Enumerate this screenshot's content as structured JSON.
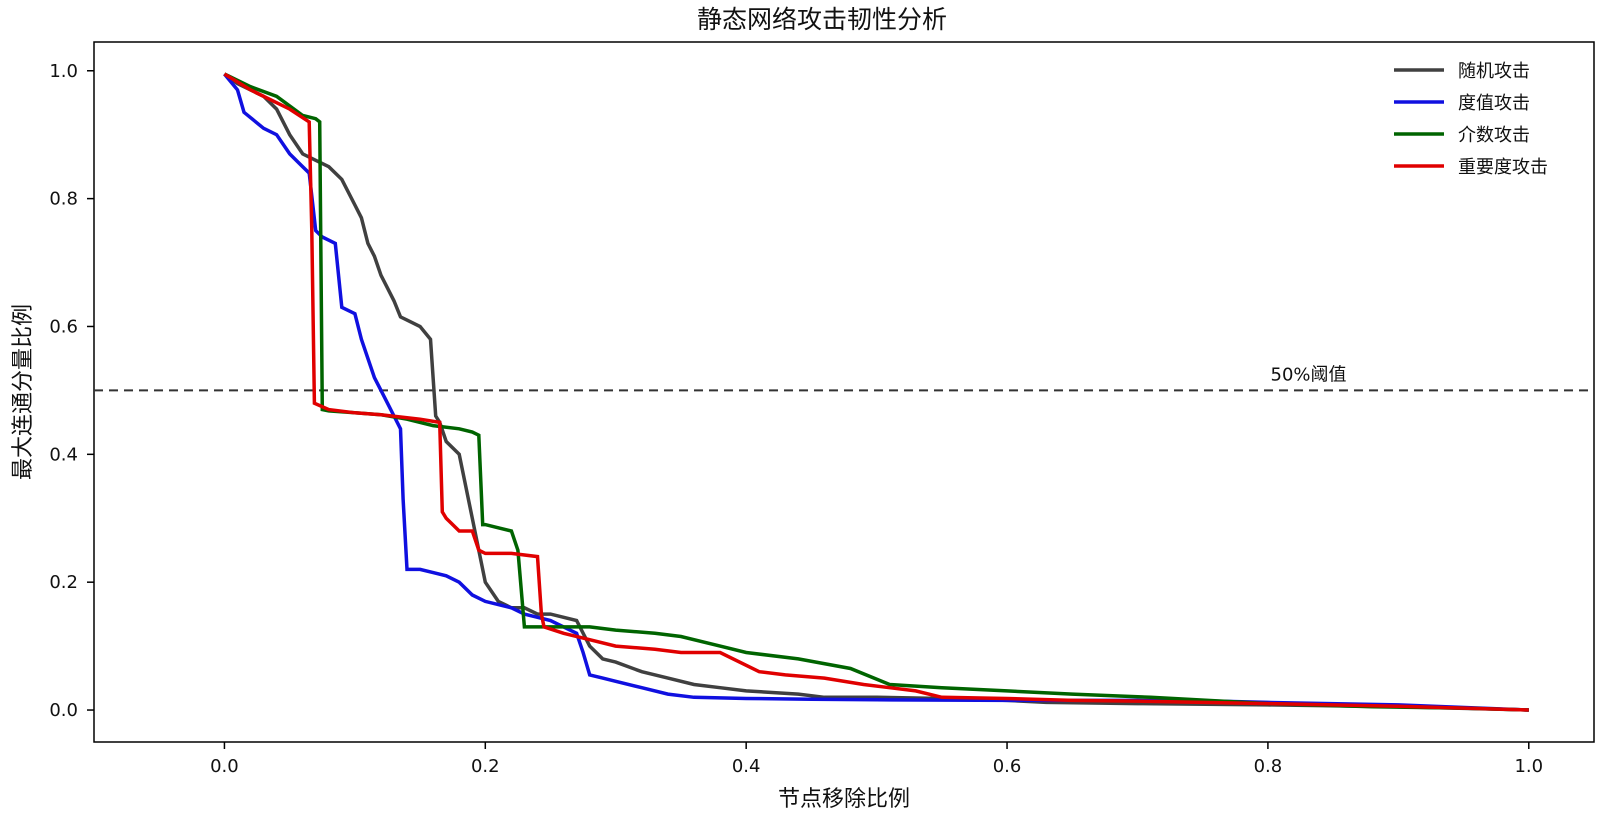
{
  "chart_data": {
    "type": "line",
    "title": "静态网络攻击韧性分析",
    "xlabel": "节点移除比例",
    "ylabel": "最大连通分量比例",
    "xlim": [
      -0.1,
      1.05
    ],
    "ylim": [
      -0.05,
      1.045
    ],
    "xticks": [
      "0.0",
      "0.2",
      "0.4",
      "0.6",
      "0.8",
      "1.0"
    ],
    "yticks": [
      "0.0",
      "0.2",
      "0.4",
      "0.6",
      "0.8",
      "1.0"
    ],
    "xtick_values": [
      0,
      0.2,
      0.4,
      0.6,
      0.8,
      1.0
    ],
    "ytick_values": [
      0,
      0.2,
      0.4,
      0.6,
      0.8,
      1.0
    ],
    "grid": false,
    "legend_position": "top-right",
    "threshold": {
      "y": 0.5,
      "label": "50%阈值",
      "color": "#333333"
    },
    "series": [
      {
        "name": "随机攻击",
        "color": "#404040",
        "x": [
          0,
          0.01,
          0.03,
          0.04,
          0.05,
          0.06,
          0.07,
          0.08,
          0.09,
          0.1,
          0.105,
          0.11,
          0.115,
          0.12,
          0.125,
          0.13,
          0.135,
          0.14,
          0.15,
          0.158,
          0.162,
          0.165,
          0.17,
          0.175,
          0.18,
          0.19,
          0.2,
          0.21,
          0.22,
          0.23,
          0.24,
          0.25,
          0.26,
          0.27,
          0.28,
          0.29,
          0.3,
          0.32,
          0.34,
          0.36,
          0.38,
          0.4,
          0.44,
          0.46,
          0.5,
          0.55,
          0.6,
          0.63,
          0.7,
          0.8,
          0.9,
          1.0
        ],
        "y": [
          0.995,
          0.98,
          0.96,
          0.94,
          0.9,
          0.87,
          0.86,
          0.85,
          0.83,
          0.79,
          0.77,
          0.73,
          0.71,
          0.68,
          0.66,
          0.64,
          0.615,
          0.61,
          0.6,
          0.58,
          0.46,
          0.45,
          0.42,
          0.41,
          0.4,
          0.3,
          0.2,
          0.17,
          0.16,
          0.16,
          0.15,
          0.15,
          0.145,
          0.14,
          0.1,
          0.08,
          0.075,
          0.06,
          0.05,
          0.04,
          0.035,
          0.03,
          0.025,
          0.02,
          0.02,
          0.018,
          0.015,
          0.012,
          0.01,
          0.008,
          0.005,
          0.0
        ]
      },
      {
        "name": "度值攻击",
        "color": "#1010e0",
        "x": [
          0,
          0.01,
          0.015,
          0.03,
          0.04,
          0.05,
          0.06,
          0.065,
          0.07,
          0.075,
          0.08,
          0.085,
          0.09,
          0.1,
          0.105,
          0.11,
          0.115,
          0.12,
          0.125,
          0.13,
          0.135,
          0.137,
          0.14,
          0.15,
          0.16,
          0.17,
          0.18,
          0.19,
          0.2,
          0.21,
          0.22,
          0.23,
          0.24,
          0.25,
          0.26,
          0.27,
          0.275,
          0.28,
          0.29,
          0.3,
          0.32,
          0.34,
          0.36,
          0.4,
          0.45,
          0.5,
          0.6,
          0.7,
          0.76,
          0.8,
          0.9,
          1.0
        ],
        "y": [
          0.995,
          0.97,
          0.935,
          0.91,
          0.9,
          0.87,
          0.85,
          0.84,
          0.75,
          0.74,
          0.735,
          0.73,
          0.63,
          0.62,
          0.58,
          0.55,
          0.52,
          0.5,
          0.48,
          0.46,
          0.44,
          0.33,
          0.22,
          0.22,
          0.215,
          0.21,
          0.2,
          0.18,
          0.17,
          0.165,
          0.16,
          0.15,
          0.145,
          0.14,
          0.13,
          0.12,
          0.09,
          0.055,
          0.05,
          0.045,
          0.035,
          0.025,
          0.02,
          0.018,
          0.017,
          0.016,
          0.015,
          0.015,
          0.014,
          0.012,
          0.008,
          0.0
        ]
      },
      {
        "name": "介数攻击",
        "color": "#006400",
        "x": [
          0,
          0.02,
          0.04,
          0.06,
          0.07,
          0.073,
          0.075,
          0.08,
          0.1,
          0.12,
          0.14,
          0.16,
          0.18,
          0.19,
          0.195,
          0.198,
          0.2,
          0.21,
          0.22,
          0.225,
          0.23,
          0.24,
          0.26,
          0.28,
          0.3,
          0.33,
          0.35,
          0.38,
          0.4,
          0.44,
          0.48,
          0.51,
          0.55,
          0.6,
          0.65,
          0.71,
          0.8,
          0.88,
          0.95,
          1.0
        ],
        "y": [
          0.995,
          0.975,
          0.96,
          0.93,
          0.925,
          0.92,
          0.47,
          0.468,
          0.465,
          0.462,
          0.455,
          0.445,
          0.44,
          0.435,
          0.43,
          0.29,
          0.29,
          0.285,
          0.28,
          0.25,
          0.13,
          0.13,
          0.13,
          0.13,
          0.125,
          0.12,
          0.115,
          0.1,
          0.09,
          0.08,
          0.065,
          0.04,
          0.035,
          0.03,
          0.025,
          0.02,
          0.01,
          0.005,
          0.003,
          0.0
        ]
      },
      {
        "name": "重要度攻击",
        "color": "#e00000",
        "x": [
          0,
          0.02,
          0.04,
          0.05,
          0.065,
          0.067,
          0.069,
          0.08,
          0.1,
          0.12,
          0.15,
          0.165,
          0.167,
          0.17,
          0.175,
          0.18,
          0.19,
          0.195,
          0.2,
          0.22,
          0.24,
          0.243,
          0.245,
          0.26,
          0.28,
          0.3,
          0.33,
          0.35,
          0.38,
          0.41,
          0.43,
          0.46,
          0.49,
          0.51,
          0.53,
          0.55,
          0.6,
          0.65,
          0.7,
          0.8,
          0.9,
          1.0
        ],
        "y": [
          0.995,
          0.97,
          0.95,
          0.94,
          0.92,
          0.75,
          0.48,
          0.47,
          0.465,
          0.462,
          0.455,
          0.45,
          0.31,
          0.3,
          0.29,
          0.28,
          0.28,
          0.25,
          0.245,
          0.245,
          0.24,
          0.15,
          0.13,
          0.12,
          0.11,
          0.1,
          0.095,
          0.09,
          0.09,
          0.06,
          0.055,
          0.05,
          0.04,
          0.035,
          0.03,
          0.02,
          0.018,
          0.015,
          0.014,
          0.01,
          0.006,
          0.0
        ]
      }
    ]
  }
}
